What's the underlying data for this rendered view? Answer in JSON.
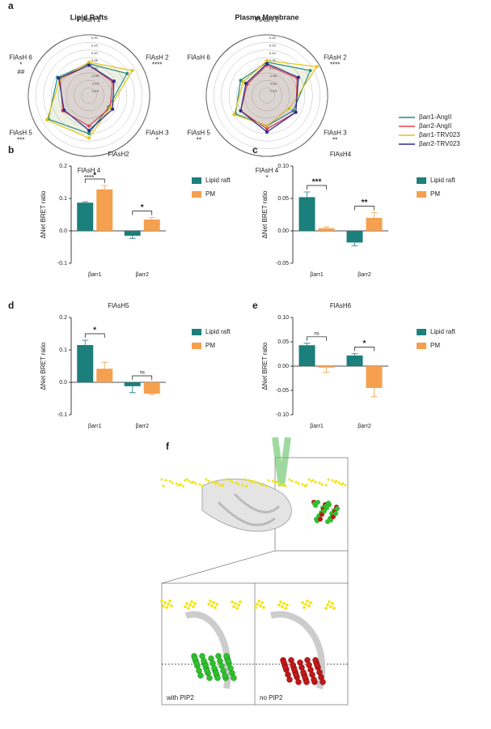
{
  "panel_labels": [
    "a",
    "b",
    "c",
    "d",
    "e",
    "f"
  ],
  "chart_data": [
    {
      "type": "radar",
      "title": "Lipid Rafts",
      "axes": [
        "FlAsH 1",
        "FlAsH 2",
        "FlAsH 3",
        "FlAsH 4",
        "FlAsH 5",
        "FlAsH 6"
      ],
      "axis_notes": [
        [],
        [
          "****"
        ],
        [
          "*"
        ],
        [
          "****"
        ],
        [
          "***"
        ],
        [
          "*",
          "##"
        ]
      ],
      "rlim": [
        -0.2,
        0.2
      ],
      "rticks": [
        {
          "value": -0.15,
          "label": "-0.15"
        },
        {
          "value": -0.1,
          "label": "-0.10"
        },
        {
          "value": -0.05,
          "label": "-0.05"
        },
        {
          "value": 0,
          "label": "0.00"
        },
        {
          "value": 0.05,
          "label": "0.05"
        },
        {
          "value": 0.1,
          "label": "0.10"
        },
        {
          "value": 0.15,
          "label": "0.15"
        },
        {
          "value": 0.2,
          "label": "0.20"
        }
      ],
      "series": [
        {
          "name": "βarr1-AngII",
          "color": "#1f8a8a",
          "values": [
            0.01,
            0.09,
            -0.05,
            0.05,
            0.11,
            0.04
          ]
        },
        {
          "name": "βarr2-AngII",
          "color": "#e8434f",
          "values": [
            0.0,
            -0.02,
            -0.04,
            0.0,
            0.0,
            0.02
          ]
        },
        {
          "name": "βarr1-TRV023",
          "color": "#e3c21a",
          "values": [
            0.02,
            0.13,
            -0.04,
            0.08,
            0.12,
            0.02
          ]
        },
        {
          "name": "βarr2-TRV023",
          "color": "#2e2a8c",
          "values": [
            0.0,
            -0.01,
            -0.02,
            0.03,
            -0.01,
            0.03
          ]
        }
      ]
    },
    {
      "type": "radar",
      "title": "Plasma Membrane",
      "axes": [
        "FlAsH 1",
        "FlAsH 2",
        "FlAsH 3",
        "FlAsH 4",
        "FlAsH 5",
        "FlAsH 6"
      ],
      "axis_notes": [
        [],
        [
          "****"
        ],
        [
          "**"
        ],
        [
          "*"
        ],
        [
          "**"
        ],
        []
      ],
      "rlim": [
        -0.2,
        0.2
      ],
      "rticks": [
        {
          "value": -0.15,
          "label": "-0.15"
        },
        {
          "value": -0.1,
          "label": "-0.10"
        },
        {
          "value": -0.05,
          "label": "-0.05"
        },
        {
          "value": 0,
          "label": "0.00"
        },
        {
          "value": 0.05,
          "label": "0.05"
        },
        {
          "value": 0.1,
          "label": "0.10"
        },
        {
          "value": 0.15,
          "label": "0.15"
        },
        {
          "value": 0.2,
          "label": "0.20"
        }
      ],
      "series": [
        {
          "color": "#1f8a8a",
          "values": [
            0.02,
            0.13,
            0.0,
            0.0,
            0.04,
            0.0
          ]
        },
        {
          "color": "#e8434f",
          "values": [
            0.0,
            0.03,
            0.02,
            0.02,
            0.0,
            -0.05
          ]
        },
        {
          "color": "#e3c21a",
          "values": [
            0.03,
            0.18,
            -0.03,
            0.0,
            0.05,
            -0.02
          ]
        },
        {
          "color": "#2e2a8c",
          "values": [
            0.01,
            0.04,
            0.02,
            0.04,
            0.0,
            -0.04
          ]
        }
      ]
    },
    {
      "type": "bar",
      "title": "FlAsH2",
      "ylabel": "ΔNet BRET ratio",
      "categories": [
        "βarr1",
        "βarr2"
      ],
      "series": [
        {
          "name": "Lipid raft",
          "color": "#1b7f7b",
          "values": [
            0.087,
            -0.015
          ],
          "errors": [
            0.003,
            0.008
          ]
        },
        {
          "name": "PM",
          "color": "#f5a04e",
          "values": [
            0.128,
            0.035
          ],
          "errors": [
            0.012,
            0.006
          ]
        }
      ],
      "ylim": [
        -0.1,
        0.2
      ],
      "yticks": [
        -0.1,
        {
          "value": 0,
          "label": "0.0"
        },
        0.1,
        0.2
      ],
      "significance": [
        "*",
        "*"
      ]
    },
    {
      "type": "bar",
      "title": "FlAsH4",
      "ylabel": "ΔNet BRET ratio",
      "categories": [
        "βarr1",
        "βarr2"
      ],
      "series": [
        {
          "name": "Lipid raft",
          "color": "#1b7f7b",
          "values": [
            0.052,
            -0.018
          ],
          "errors": [
            0.008,
            0.005
          ]
        },
        {
          "name": "PM",
          "color": "#f5a04e",
          "values": [
            0.004,
            0.02
          ],
          "errors": [
            0.002,
            0.008
          ]
        }
      ],
      "ylim": [
        -0.05,
        0.1
      ],
      "yticks": [
        -0.05,
        {
          "value": 0,
          "label": "0.00"
        },
        0.05,
        {
          "value": 0.1,
          "label": "0.10"
        }
      ],
      "significance": [
        "***",
        "**"
      ]
    },
    {
      "type": "bar",
      "title": "FlAsH5",
      "ylabel": "ΔNet BRET ratio",
      "categories": [
        "βarr1",
        "βarr2"
      ],
      "series": [
        {
          "name": "Lipid raft",
          "color": "#1b7f7b",
          "values": [
            0.115,
            -0.012
          ],
          "errors": [
            0.015,
            0.02
          ]
        },
        {
          "name": "PM",
          "color": "#f5a04e",
          "values": [
            0.042,
            -0.035
          ],
          "errors": [
            0.02,
            0.003
          ]
        }
      ],
      "ylim": [
        -0.1,
        0.2
      ],
      "yticks": [
        -0.1,
        {
          "value": 0,
          "label": "0.0"
        },
        0.1,
        0.2
      ],
      "significance": [
        "*",
        "ns"
      ]
    },
    {
      "type": "bar",
      "title": "FlAsH6",
      "ylabel": "ΔNet BRET ratio",
      "categories": [
        "βarr1",
        "βarr2"
      ],
      "series": [
        {
          "name": "Lipid raft",
          "color": "#1b7f7b",
          "values": [
            0.043,
            0.022
          ],
          "errors": [
            0.004,
            0.004
          ]
        },
        {
          "name": "PM",
          "color": "#f5a04e",
          "values": [
            -0.003,
            -0.045
          ],
          "errors": [
            0.01,
            0.018
          ]
        }
      ],
      "ylim": [
        -0.1,
        0.1
      ],
      "yticks": [
        {
          "value": -0.1,
          "label": "-0.10"
        },
        -0.05,
        {
          "value": 0,
          "label": "0.00"
        },
        0.05,
        {
          "value": 0.1,
          "label": "0.10"
        }
      ],
      "significance": [
        "ns",
        "*"
      ]
    }
  ],
  "panel_f": {
    "insets": [
      "with PIP2",
      "no PIP2"
    ]
  }
}
